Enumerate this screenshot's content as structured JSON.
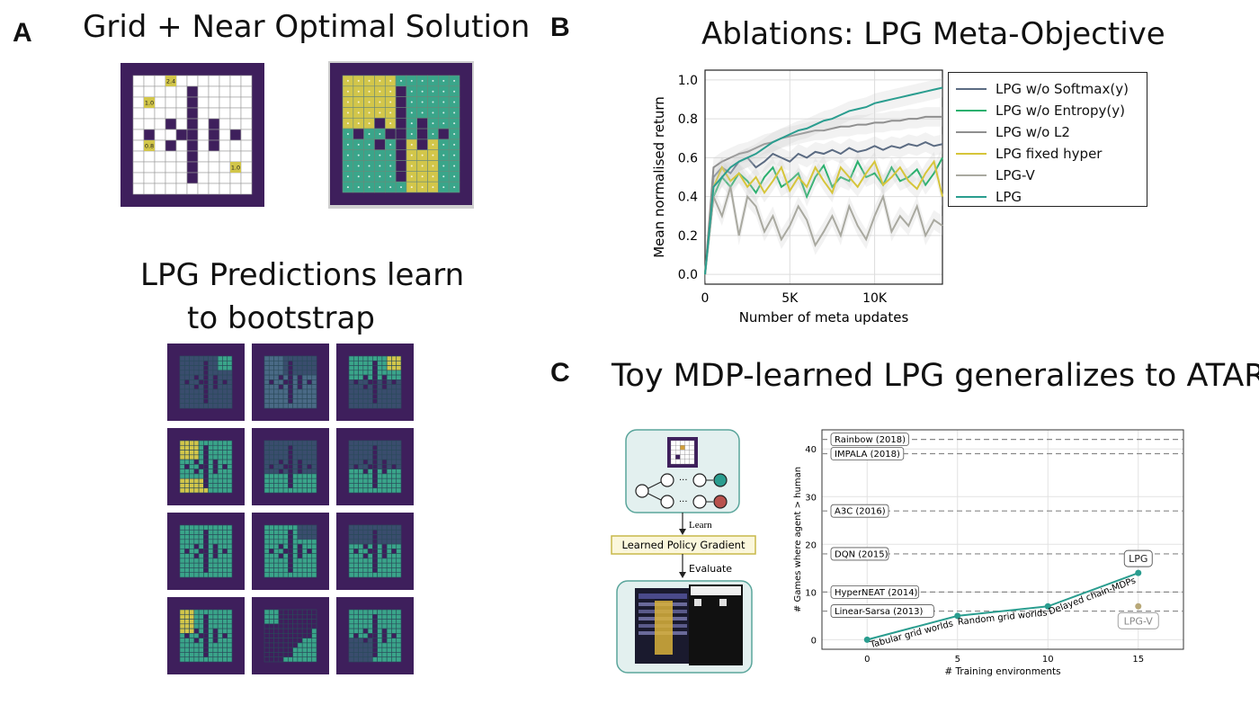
{
  "panelA": {
    "letter": "A",
    "title": "Grid + Near Optimal Solution",
    "grid_labels": [
      "2.4",
      "1.0",
      "0.8",
      "1.0"
    ],
    "predictions_title_line1": "LPG Predictions learn",
    "predictions_title_line2": "to bootstrap"
  },
  "panelB": {
    "letter": "B",
    "chart_data": {
      "type": "line",
      "title": "Ablations: LPG Meta-Objective",
      "xlabel": "Number of meta updates",
      "ylabel": "Mean normalised return",
      "xlim": [
        0,
        14000
      ],
      "ylim": [
        -0.05,
        1.05
      ],
      "xticks": [
        0,
        5000,
        10000
      ],
      "xtick_labels": [
        "0",
        "5K",
        "10K"
      ],
      "yticks": [
        0.0,
        0.2,
        0.4,
        0.6,
        0.8,
        1.0
      ],
      "ytick_labels": [
        "0.0",
        "0.2",
        "0.4",
        "0.6",
        "0.8",
        "1.0"
      ],
      "grid": true,
      "legend_position": "right-outside",
      "x": [
        0,
        500,
        1000,
        1500,
        2000,
        2500,
        3000,
        3500,
        4000,
        4500,
        5000,
        5500,
        6000,
        6500,
        7000,
        7500,
        8000,
        8500,
        9000,
        9500,
        10000,
        10500,
        11000,
        11500,
        12000,
        12500,
        13000,
        13500,
        14000
      ],
      "series": [
        {
          "name": "LPG w/o Softmax(y)",
          "color": "#5b6b82",
          "values": [
            0.0,
            0.5,
            0.55,
            0.52,
            0.58,
            0.6,
            0.55,
            0.58,
            0.62,
            0.6,
            0.58,
            0.62,
            0.6,
            0.63,
            0.62,
            0.64,
            0.62,
            0.65,
            0.63,
            0.64,
            0.66,
            0.64,
            0.66,
            0.65,
            0.67,
            0.66,
            0.68,
            0.66,
            0.67
          ]
        },
        {
          "name": "LPG w/o Entropy(y)",
          "color": "#2bb06e",
          "values": [
            0.0,
            0.4,
            0.5,
            0.45,
            0.52,
            0.48,
            0.42,
            0.5,
            0.55,
            0.45,
            0.48,
            0.52,
            0.4,
            0.5,
            0.56,
            0.45,
            0.5,
            0.48,
            0.58,
            0.5,
            0.52,
            0.46,
            0.55,
            0.48,
            0.5,
            0.54,
            0.46,
            0.52,
            0.6
          ]
        },
        {
          "name": "LPG w/o L2",
          "color": "#8f8f8f",
          "values": [
            0.0,
            0.55,
            0.58,
            0.6,
            0.62,
            0.63,
            0.65,
            0.67,
            0.68,
            0.7,
            0.71,
            0.72,
            0.73,
            0.74,
            0.74,
            0.75,
            0.76,
            0.76,
            0.77,
            0.77,
            0.78,
            0.78,
            0.79,
            0.79,
            0.8,
            0.8,
            0.81,
            0.81,
            0.81
          ]
        },
        {
          "name": "LPG fixed hyper",
          "color": "#d6c53a",
          "values": [
            0.0,
            0.45,
            0.55,
            0.48,
            0.52,
            0.45,
            0.5,
            0.42,
            0.48,
            0.55,
            0.43,
            0.5,
            0.45,
            0.55,
            0.48,
            0.42,
            0.55,
            0.5,
            0.45,
            0.52,
            0.58,
            0.46,
            0.5,
            0.55,
            0.48,
            0.44,
            0.52,
            0.58,
            0.4
          ]
        },
        {
          "name": "LPG-V",
          "color": "#a9a9a0",
          "values": [
            0.0,
            0.4,
            0.3,
            0.45,
            0.2,
            0.4,
            0.35,
            0.22,
            0.3,
            0.18,
            0.25,
            0.35,
            0.28,
            0.15,
            0.22,
            0.3,
            0.2,
            0.35,
            0.25,
            0.18,
            0.3,
            0.4,
            0.22,
            0.3,
            0.25,
            0.35,
            0.2,
            0.28,
            0.25
          ]
        },
        {
          "name": "LPG",
          "color": "#2a9d8f",
          "values": [
            0.0,
            0.45,
            0.5,
            0.55,
            0.58,
            0.6,
            0.62,
            0.65,
            0.68,
            0.7,
            0.72,
            0.74,
            0.75,
            0.77,
            0.79,
            0.8,
            0.82,
            0.84,
            0.85,
            0.86,
            0.88,
            0.89,
            0.9,
            0.91,
            0.92,
            0.93,
            0.94,
            0.95,
            0.96
          ]
        }
      ]
    }
  },
  "panelC": {
    "letter": "C",
    "title": "Toy MDP-learned LPG generalizes to ATARI",
    "diagram": {
      "learn_label": "Learn",
      "box_label": "Learned Policy Gradient",
      "evaluate_label": "Evaluate",
      "node_dots": "···"
    },
    "chart_data": {
      "type": "line",
      "xlabel": "# Training environments",
      "ylabel": "# Games where agent > human",
      "xlim": [
        -2.5,
        17.5
      ],
      "ylim": [
        -2,
        44
      ],
      "xticks": [
        0,
        5,
        10,
        15
      ],
      "yticks": [
        0,
        10,
        20,
        30,
        40
      ],
      "grid": true,
      "series": [
        {
          "name": "LPG",
          "color": "#2a9d8f",
          "x": [
            0,
            5,
            10,
            15
          ],
          "values": [
            0,
            5,
            7,
            14
          ]
        }
      ],
      "point_labels": [
        {
          "text": "LPG",
          "x": 15,
          "y": 14
        },
        {
          "text": "LPG-V",
          "x": 15,
          "y": 7
        }
      ],
      "extra_points": [
        {
          "x": 15,
          "y": 7,
          "color": "#b8a878"
        }
      ],
      "segment_labels": [
        "Tabular grid worlds",
        "Random grid worlds",
        "Delayed chain-MDPs"
      ],
      "baselines": [
        {
          "label": "Rainbow (2018)",
          "y": 42
        },
        {
          "label": "IMPALA (2018)",
          "y": 39
        },
        {
          "label": "A3C (2016)",
          "y": 27
        },
        {
          "label": "DQN (2015)",
          "y": 18
        },
        {
          "label": "HyperNEAT (2014)",
          "y": 10
        },
        {
          "label": "Linear-Sarsa (2013)",
          "y": 6
        }
      ]
    }
  },
  "colors": {
    "grid_wall": "#3e1f5c",
    "teal": "#2a9d8f",
    "green_cell": "#3aa58a",
    "yellow_cell": "#d2c64a",
    "dark_cell": "#3a4d6e"
  }
}
